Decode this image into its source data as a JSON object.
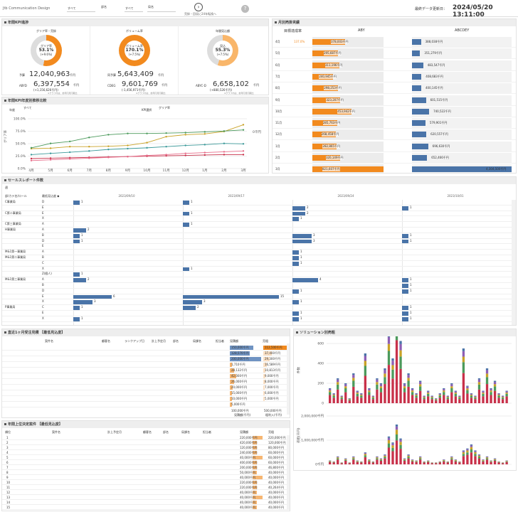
{
  "header": {
    "brand": "Jtb Communication Design",
    "filter1_value": "すべて",
    "filter2_label": "部名",
    "filter2_value": "すべて",
    "filter3_label": "局名",
    "nav_label": "売掛・回収に24年転換へ",
    "update_label": "最終データ更新日：",
    "update_value": "2024/05/20 13:11:00"
  },
  "kpi": {
    "title": "年間KPI進捗",
    "cards": [
      {
        "title": "グリア率・売掛",
        "center1": "グリア率",
        "pct": "53.1%",
        "center2": "(+9.6%)",
        "l1": "予算",
        "v1": "12,040,963",
        "u1": "千円",
        "l2": "ABYD",
        "v2": "6,397,554",
        "u2": "千円",
        "sub": "(+1,156,626千円)",
        "note": "※グラフ内は、前年同月同期比",
        "fill": 0.531,
        "color": "#f28a1e"
      },
      {
        "title": "ボリューム率",
        "center1": "ボリューム率",
        "pct": "170.1%",
        "center2": "(+7.5%)",
        "l1": "同予算",
        "v1": "5,643,409",
        "u1": "千円",
        "l2": "CDEG",
        "v2": "9,601,769",
        "u2": "千円",
        "sub": "(-1,456,971千円)",
        "note": "※グラフ内は、前年同月同期比",
        "fill": 1.0,
        "color": "#f28a1e"
      },
      {
        "title": "年間見込額",
        "center1": "見込",
        "pct": "55.3%",
        "center2": "(+7.5%)",
        "l1": "",
        "v1": "",
        "u1": "",
        "l2": "ABYC-D",
        "v2": "6,658,102",
        "u2": "千円",
        "sub": "(+880,526千円)",
        "note": "※グラフ内は、前年同月同期比",
        "fill": 0.553,
        "color": "#f9b66a"
      }
    ]
  },
  "trend": {
    "title": "年間KPI年度別推移比較",
    "f1_label": "年度",
    "f1_value": "すべて",
    "f2_label": "KPI選択",
    "f2_value": "グリア率",
    "y_ticks": [
      "100.0%",
      "75.0%",
      "50.0%",
      "25.0%",
      "0.0%"
    ],
    "ylabel": "グリア率",
    "months": [
      "4月",
      "5月",
      "6月",
      "7月",
      "8月",
      "9月",
      "10月",
      "11月",
      "12月",
      "1月",
      "2月",
      "3月"
    ],
    "right_label": "0千円"
  },
  "monthly": {
    "title": "月別売掛実績",
    "col0": "目標達成率",
    "col1": "ABY",
    "col2": "ABCDEY",
    "rows": [
      {
        "m": "4月",
        "rate": "137.0%",
        "a": "378,003千円",
        "av": 378003,
        "b": "388,038千円",
        "bv": 388038
      },
      {
        "m": "5月",
        "rate": "",
        "a": "295,687千円",
        "av": 295687,
        "b": "351,279千円",
        "bv": 351279
      },
      {
        "m": "6月",
        "rate": "",
        "a": "311,196千円",
        "av": 311196,
        "b": "483,547千円",
        "bv": 483547
      },
      {
        "m": "7月",
        "rate": "",
        "a": "240,945千円",
        "av": 240945,
        "b": "408,683千円",
        "bv": 408683
      },
      {
        "m": "8月",
        "rate": "",
        "a": "298,253千円",
        "av": 298253,
        "b": "400,145千円",
        "bv": 400145
      },
      {
        "m": "9月",
        "rate": "",
        "a": "323,207千円",
        "av": 323207,
        "b": "601,515千円",
        "bv": 601515
      },
      {
        "m": "10月",
        "rate": "",
        "a": "453,942千円",
        "av": 453942,
        "b": "740,522千円",
        "bv": 740522
      },
      {
        "m": "11月",
        "rate": "",
        "a": "285,763千円",
        "av": 285763,
        "b": "579,901千円",
        "bv": 579901
      },
      {
        "m": "12月",
        "rate": "",
        "a": "268,458千円",
        "av": 268458,
        "b": "620,557千円",
        "bv": 620557
      },
      {
        "m": "1月",
        "rate": "",
        "a": "282,865千円",
        "av": 282865,
        "b": "696,630千円",
        "bv": 696630
      },
      {
        "m": "2月",
        "rate": "",
        "a": "320,149千円",
        "av": 320149,
        "b": "652,466千円",
        "bv": 652466
      },
      {
        "m": "3月",
        "rate": "",
        "a": "821,607千円",
        "av": 821607,
        "b": "4,304,500千円",
        "bv": 4304500
      }
    ]
  },
  "sales": {
    "title": "セールスレポート件数",
    "filter": "週",
    "col_a": "部/カテ名/ロール",
    "col_b": "最低見込度 ◆",
    "weeks": [
      "2023/09/10",
      "2023/09/17",
      "2023/09/24",
      "2023/10/01"
    ],
    "rows": [
      {
        "g": "C事業局",
        "k": "D",
        "v": [
          1,
          1,
          0,
          0
        ]
      },
      {
        "g": "",
        "k": "E",
        "v": [
          0,
          0,
          2,
          1
        ]
      },
      {
        "g": "C第二事業局",
        "k": "E",
        "v": [
          0,
          1,
          2,
          0
        ]
      },
      {
        "g": "",
        "k": "X",
        "v": [
          0,
          0,
          1,
          0
        ]
      },
      {
        "g": "C第三事業局",
        "k": "A",
        "v": [
          0,
          1,
          0,
          0
        ]
      },
      {
        "g": "H事業局",
        "k": "A",
        "v": [
          2,
          0,
          0,
          0
        ]
      },
      {
        "g": "",
        "k": "B",
        "v": [
          1,
          0,
          3,
          1
        ]
      },
      {
        "g": "",
        "k": "D",
        "v": [
          1,
          0,
          3,
          1
        ]
      },
      {
        "g": "",
        "k": "E",
        "v": [
          0,
          0,
          0,
          0
        ]
      },
      {
        "g": "M&1第一事業局",
        "k": "A",
        "v": [
          0,
          0,
          1,
          0
        ]
      },
      {
        "g": "M&1第二事業局",
        "k": "B",
        "v": [
          0,
          0,
          1,
          0
        ]
      },
      {
        "g": "",
        "k": "C",
        "v": [
          0,
          0,
          1,
          0
        ]
      },
      {
        "g": "",
        "k": "X",
        "v": [
          0,
          1,
          0,
          0
        ]
      },
      {
        "g": "",
        "k": "Z(個人)",
        "v": [
          1,
          0,
          0,
          0
        ]
      },
      {
        "g": "M&1第三事業局",
        "k": "A",
        "v": [
          2,
          0,
          4,
          1
        ]
      },
      {
        "g": "",
        "k": "B",
        "v": [
          0,
          0,
          0,
          1
        ]
      },
      {
        "g": "",
        "k": "D",
        "v": [
          0,
          0,
          1,
          1
        ]
      },
      {
        "g": "",
        "k": "E",
        "v": [
          6,
          15,
          0,
          0
        ]
      },
      {
        "g": "",
        "k": "X",
        "v": [
          3,
          3,
          1,
          0
        ]
      },
      {
        "g": "P事業局",
        "k": "C",
        "v": [
          1,
          2,
          0,
          1
        ]
      },
      {
        "g": "",
        "k": "E",
        "v": [
          0,
          0,
          1,
          1
        ]
      },
      {
        "g": "",
        "k": "X",
        "v": [
          1,
          0,
          1,
          1
        ]
      }
    ]
  },
  "forecast": {
    "title": "直近1ヶ月受注見積",
    "tag": "【最低見込度】",
    "cols": [
      "案件名",
      "顧客名",
      "ランクアップ日",
      "計上予定月",
      "部名",
      "局課名",
      "担当者",
      "見積額",
      "売粗"
    ],
    "rows": [
      {
        "amt": "150,000千円",
        "av": 150000,
        "prof": "112,500千円",
        "pv": 112500
      },
      {
        "amt": "128,570千円",
        "av": 128570,
        "prof": "37,400千円",
        "pv": 37400
      },
      {
        "amt": "200,000千円",
        "av": 200000,
        "prof": "29,300千円",
        "pv": 29300
      },
      {
        "amt": "1,710千円",
        "av": 1710,
        "prof": "16,589千円",
        "pv": 16589
      },
      {
        "amt": "28,132千円",
        "av": 28132,
        "prof": "10,813千円",
        "pv": 10813
      },
      {
        "amt": "42,000千円",
        "av": 42000,
        "prof": "9,000千円",
        "pv": 9000
      },
      {
        "amt": "26,000千円",
        "av": 26000,
        "prof": "8,000千円",
        "pv": 8000
      },
      {
        "amt": "20,000千円",
        "av": 20000,
        "prof": "7,000千円",
        "pv": 7000
      },
      {
        "amt": "15,000千円",
        "av": 15000,
        "prof": "6,000千円",
        "pv": 6000
      },
      {
        "amt": "10,000千円",
        "av": 10000,
        "prof": "5,000千円",
        "pv": 5000
      },
      {
        "amt": "5,000千円",
        "av": 5000,
        "prof": "",
        "pv": 0
      }
    ],
    "axis1": "100,000千円",
    "axis2": "500,000千円",
    "foot1": "見積額(千円)",
    "foot2": "粗利入(千円)"
  },
  "solution": {
    "title": "ソリューション別売粗",
    "top_ticks": [
      "600",
      "400",
      "200",
      "0"
    ],
    "top_label": "件数",
    "bot_ticks": [
      "2,000,000千円",
      "1,000,000千円",
      "0千円"
    ],
    "bot_label": "売粗(千円)"
  },
  "topdeals": {
    "title": "年間上位決定案件",
    "tag": "【最低見込度】",
    "cols": [
      "順位",
      "案件名",
      "計上予定月",
      "顧客名",
      "部名",
      "局課名",
      "担当者",
      "見積額",
      "売粗"
    ],
    "rows": [
      {
        "r": "1",
        "a": "220,000千円",
        "b": "220,000千円"
      },
      {
        "r": "2",
        "a": "420,000千円",
        "b": "120,000千円"
      },
      {
        "r": "3",
        "a": "120,000千円",
        "b": "80,000千円"
      },
      {
        "r": "4",
        "a": "240,000千円",
        "b": "60,000千円"
      },
      {
        "r": "5",
        "a": "40,000千円",
        "b": "60,000千円"
      },
      {
        "r": "6",
        "a": "400,000千円",
        "b": "60,000千円"
      },
      {
        "r": "7",
        "a": "200,000千円",
        "b": "46,800千円"
      },
      {
        "r": "8",
        "a": "50,000千円",
        "b": "40,000千円"
      },
      {
        "r": "9",
        "a": "40,000千円",
        "b": "40,000千円"
      },
      {
        "r": "10",
        "a": "220,000千円",
        "b": "40,000千円"
      },
      {
        "r": "11",
        "a": "220,000千円",
        "b": "40,264千円"
      },
      {
        "r": "12",
        "a": "40,000千円",
        "b": "40,000千円"
      },
      {
        "r": "13",
        "a": "40,000千円",
        "b": "40,000千円"
      },
      {
        "r": "14",
        "a": "40,000千円",
        "b": "40,000千円"
      },
      {
        "r": "15",
        "a": "40,000千円",
        "b": "40,000千円"
      }
    ]
  },
  "colors": {
    "accent": "#f28a1e",
    "blue": "#4a74a8",
    "green": "#4c9a5c",
    "gold": "#c9a227",
    "teal": "#3d9a9a",
    "red": "#c8314a",
    "pink": "#e76d8a"
  }
}
